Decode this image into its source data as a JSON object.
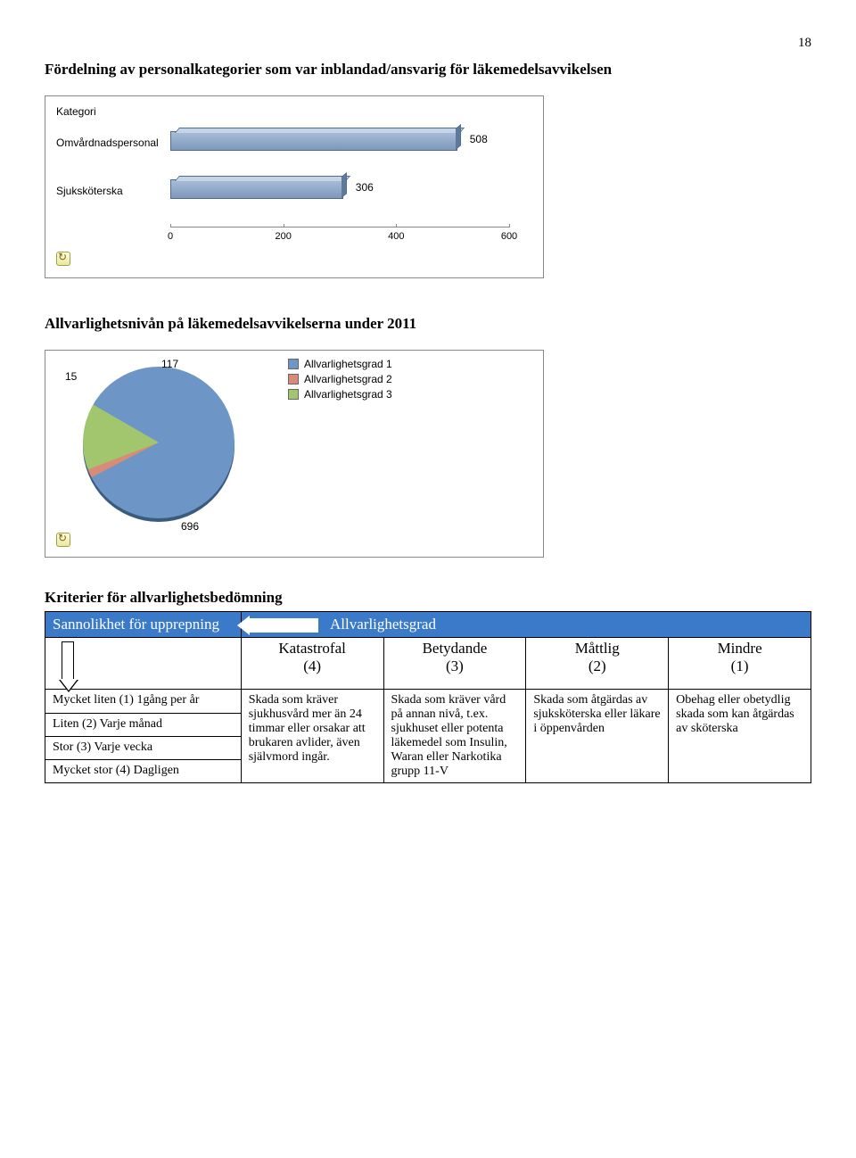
{
  "page_number": "18",
  "heading1": "Fördelning av personalkategorier som var inblandad/ansvarig för läkemedelsavvikelsen",
  "heading2": "Allvarlighetsnivån på läkemedelsavvikelserna under 2011",
  "heading3": "Kriterier för allvarlighetsbedömning",
  "bar_chart": {
    "y_axis_title": "Kategori",
    "x_ticks": [
      0,
      200,
      400,
      600
    ],
    "x_max": 600,
    "bars": [
      {
        "label": "Omvårdnadspersonal",
        "value": 508
      },
      {
        "label": "Sjuksköterska",
        "value": 306
      }
    ],
    "colors": {
      "bar_fill": "#7d98bb",
      "bar_border": "#506d91"
    }
  },
  "pie_chart": {
    "slices": [
      {
        "label": "Allvarlighetsgrad 1",
        "value": 696,
        "color": "#6d96c6"
      },
      {
        "label": "Allvarlighetsgrad 2",
        "value": 15,
        "color": "#d98b77"
      },
      {
        "label": "Allvarlighetsgrad 3",
        "value": 117,
        "color": "#a2c66d"
      }
    ]
  },
  "table": {
    "header_left": "Sannolikhet för upprepning",
    "header_right": "Allvarlighetsgrad",
    "cols": [
      {
        "title": "Katastrofal",
        "num": "(4)"
      },
      {
        "title": "Betydande",
        "num": "(3)"
      },
      {
        "title": "Måttlig",
        "num": "(2)"
      },
      {
        "title": "Mindre",
        "num": "(1)"
      }
    ],
    "left_rows": [
      "Mycket liten (1) 1gång per år",
      "Liten (2) Varje månad",
      "Stor (3) Varje vecka",
      "Mycket stor (4) Dagligen"
    ],
    "body_cells": [
      "Skada som kräver sjukhusvård mer än 24 timmar eller orsakar att brukaren avlider, även självmord ingår.",
      "Skada som kräver vård på annan nivå, t.ex. sjukhuset eller potenta läkemedel som Insulin, Waran eller Narkotika grupp 11-V",
      "Skada som åtgärdas av sjuksköterska eller läkare i öppenvården",
      "Obehag eller obetydlig skada som kan åtgärdas av sköterska"
    ]
  }
}
